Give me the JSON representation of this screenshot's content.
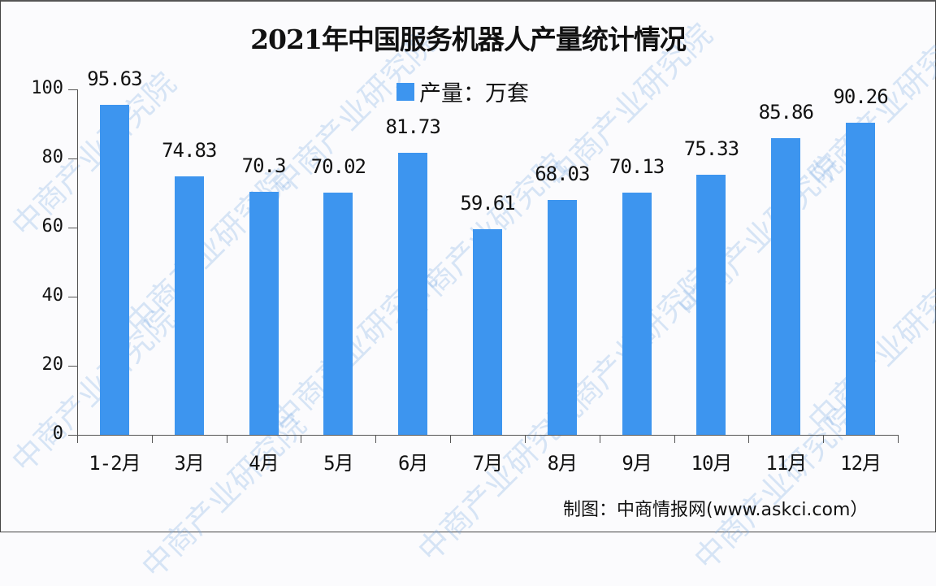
{
  "title": "2021年中国服务机器人产量统计情况",
  "legend": {
    "label": "产量：万套",
    "color": "#3d95ef"
  },
  "source": "制图：中商情报网(www.askci.com）",
  "watermark": "中商产业研究院",
  "y_axis": {
    "ticks": [
      "0",
      "20",
      "40",
      "60",
      "80",
      "100"
    ]
  },
  "chart_data": {
    "type": "bar",
    "title": "2021年中国服务机器人产量统计情况",
    "xlabel": "",
    "ylabel": "",
    "ylim": [
      0,
      100
    ],
    "yticks": [
      0,
      20,
      40,
      60,
      80,
      100
    ],
    "grid": false,
    "legend_position": "top-center",
    "categories": [
      "1-2月",
      "3月",
      "4月",
      "5月",
      "6月",
      "7月",
      "8月",
      "9月",
      "10月",
      "11月",
      "12月"
    ],
    "series": [
      {
        "name": "产量：万套",
        "color": "#3d95ef",
        "values": [
          95.63,
          74.83,
          70.3,
          70.02,
          81.73,
          59.61,
          68.03,
          70.13,
          75.33,
          85.86,
          90.26
        ]
      }
    ],
    "data_labels": [
      "95.63",
      "74.83",
      "70.3",
      "70.02",
      "81.73",
      "59.61",
      "68.03",
      "70.13",
      "75.33",
      "85.86",
      "90.26"
    ],
    "annotations": [
      "制图：中商情报网(www.askci.com）"
    ]
  }
}
